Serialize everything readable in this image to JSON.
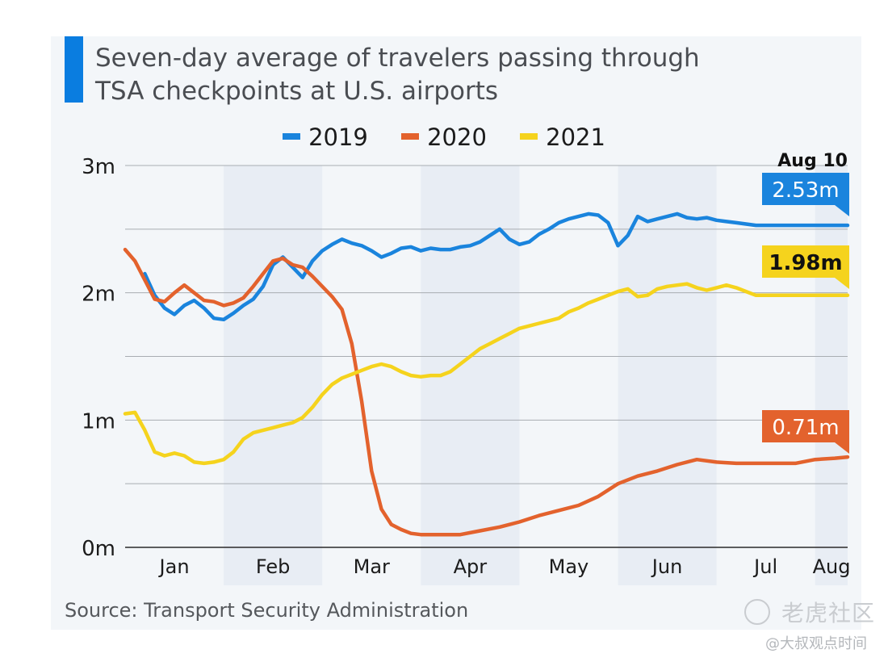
{
  "title_lines": [
    "Seven-day average of travelers passing through",
    "TSA checkpoints at U.S. airports"
  ],
  "source": "Source: Transport Security Administration",
  "watermark": {
    "brand": "老虎社区",
    "handle": "@大叔观点时间"
  },
  "chart_data": {
    "type": "line",
    "title": "Seven-day average of travelers passing through TSA checkpoints at U.S. airports",
    "xlabel": "",
    "ylabel": "",
    "ylim": [
      0,
      3
    ],
    "y_unit": "million travelers",
    "y_ticks": [
      0,
      1,
      2,
      3
    ],
    "y_tick_labels": [
      "0m",
      "1m",
      "2m",
      "3m"
    ],
    "grid": true,
    "minor_gridlines": [
      0.5,
      1.5,
      2.5
    ],
    "x_range_months": [
      0.0,
      7.33
    ],
    "x_tick_labels": [
      "Jan",
      "Feb",
      "Mar",
      "Apr",
      "May",
      "Jun",
      "Jul",
      "Aug"
    ],
    "shaded_months": [
      "Feb",
      "Apr",
      "Jun",
      "Aug"
    ],
    "legend": {
      "placement": "top-center",
      "entries": [
        "2019",
        "2020",
        "2021"
      ]
    },
    "end_annotation": "Aug 10",
    "series": [
      {
        "name": "2019",
        "color": "#1a84dd",
        "end_label": "2.53m",
        "x": [
          0.2,
          0.3,
          0.4,
          0.5,
          0.6,
          0.7,
          0.8,
          0.9,
          1.0,
          1.1,
          1.2,
          1.3,
          1.4,
          1.5,
          1.6,
          1.7,
          1.8,
          1.9,
          2.0,
          2.1,
          2.2,
          2.3,
          2.4,
          2.5,
          2.6,
          2.7,
          2.8,
          2.9,
          3.0,
          3.1,
          3.2,
          3.3,
          3.4,
          3.5,
          3.6,
          3.7,
          3.8,
          3.9,
          4.0,
          4.1,
          4.2,
          4.3,
          4.4,
          4.5,
          4.6,
          4.7,
          4.8,
          4.9,
          5.0,
          5.1,
          5.2,
          5.3,
          5.4,
          5.5,
          5.6,
          5.7,
          5.8,
          5.9,
          6.0,
          6.1,
          6.2,
          6.3,
          6.4,
          6.5,
          6.6,
          6.7,
          6.8,
          6.9,
          7.0,
          7.1,
          7.2,
          7.33
        ],
        "values": [
          2.15,
          1.98,
          1.88,
          1.83,
          1.9,
          1.94,
          1.88,
          1.8,
          1.79,
          1.84,
          1.9,
          1.95,
          2.05,
          2.22,
          2.28,
          2.2,
          2.12,
          2.25,
          2.33,
          2.38,
          2.42,
          2.39,
          2.37,
          2.33,
          2.28,
          2.31,
          2.35,
          2.36,
          2.33,
          2.35,
          2.34,
          2.34,
          2.36,
          2.37,
          2.4,
          2.45,
          2.5,
          2.42,
          2.38,
          2.4,
          2.46,
          2.5,
          2.55,
          2.58,
          2.6,
          2.62,
          2.61,
          2.55,
          2.37,
          2.45,
          2.6,
          2.56,
          2.58,
          2.6,
          2.62,
          2.59,
          2.58,
          2.59,
          2.57,
          2.56,
          2.55,
          2.54,
          2.53,
          2.53,
          2.53,
          2.53,
          2.53,
          2.53,
          2.53,
          2.53,
          2.53,
          2.53
        ]
      },
      {
        "name": "2020",
        "color": "#e3622d",
        "end_label": "0.71m",
        "x": [
          0.0,
          0.1,
          0.2,
          0.3,
          0.4,
          0.5,
          0.6,
          0.7,
          0.8,
          0.9,
          1.0,
          1.1,
          1.2,
          1.3,
          1.4,
          1.5,
          1.6,
          1.7,
          1.8,
          1.9,
          2.0,
          2.1,
          2.2,
          2.3,
          2.4,
          2.5,
          2.6,
          2.7,
          2.8,
          2.9,
          3.0,
          3.2,
          3.4,
          3.6,
          3.8,
          4.0,
          4.2,
          4.4,
          4.6,
          4.8,
          5.0,
          5.2,
          5.4,
          5.6,
          5.8,
          6.0,
          6.2,
          6.4,
          6.6,
          6.8,
          7.0,
          7.2,
          7.33
        ],
        "values": [
          2.34,
          2.25,
          2.1,
          1.95,
          1.93,
          2.0,
          2.06,
          2.0,
          1.94,
          1.93,
          1.9,
          1.92,
          1.96,
          2.05,
          2.15,
          2.25,
          2.27,
          2.22,
          2.2,
          2.13,
          2.05,
          1.97,
          1.87,
          1.6,
          1.15,
          0.6,
          0.3,
          0.18,
          0.14,
          0.11,
          0.1,
          0.1,
          0.1,
          0.13,
          0.16,
          0.2,
          0.25,
          0.29,
          0.33,
          0.4,
          0.5,
          0.56,
          0.6,
          0.65,
          0.69,
          0.67,
          0.66,
          0.66,
          0.66,
          0.66,
          0.69,
          0.7,
          0.71
        ]
      },
      {
        "name": "2021",
        "color": "#f5d31d",
        "end_label": "1.98m",
        "x": [
          0.0,
          0.1,
          0.2,
          0.3,
          0.4,
          0.5,
          0.6,
          0.7,
          0.8,
          0.9,
          1.0,
          1.1,
          1.2,
          1.3,
          1.4,
          1.5,
          1.6,
          1.7,
          1.8,
          1.9,
          2.0,
          2.1,
          2.2,
          2.3,
          2.4,
          2.5,
          2.6,
          2.7,
          2.8,
          2.9,
          3.0,
          3.1,
          3.2,
          3.3,
          3.4,
          3.5,
          3.6,
          3.7,
          3.8,
          3.9,
          4.0,
          4.1,
          4.2,
          4.3,
          4.4,
          4.5,
          4.6,
          4.7,
          4.8,
          4.9,
          5.0,
          5.1,
          5.2,
          5.3,
          5.4,
          5.5,
          5.6,
          5.7,
          5.8,
          5.9,
          6.0,
          6.1,
          6.2,
          6.3,
          6.4,
          6.5,
          6.6,
          6.7,
          6.8,
          6.9,
          7.0,
          7.1,
          7.2,
          7.33
        ],
        "values": [
          1.05,
          1.06,
          0.92,
          0.75,
          0.72,
          0.74,
          0.72,
          0.67,
          0.66,
          0.67,
          0.69,
          0.75,
          0.85,
          0.9,
          0.92,
          0.94,
          0.96,
          0.98,
          1.02,
          1.1,
          1.2,
          1.28,
          1.33,
          1.36,
          1.39,
          1.42,
          1.44,
          1.42,
          1.38,
          1.35,
          1.34,
          1.35,
          1.35,
          1.38,
          1.44,
          1.5,
          1.56,
          1.6,
          1.64,
          1.68,
          1.72,
          1.74,
          1.76,
          1.78,
          1.8,
          1.85,
          1.88,
          1.92,
          1.95,
          1.98,
          2.01,
          2.03,
          1.97,
          1.98,
          2.03,
          2.05,
          2.06,
          2.07,
          2.04,
          2.02,
          2.04,
          2.06,
          2.04,
          2.01,
          1.98,
          1.98,
          1.98,
          1.98,
          1.98,
          1.98,
          1.98,
          1.98,
          1.98,
          1.98
        ]
      }
    ]
  }
}
